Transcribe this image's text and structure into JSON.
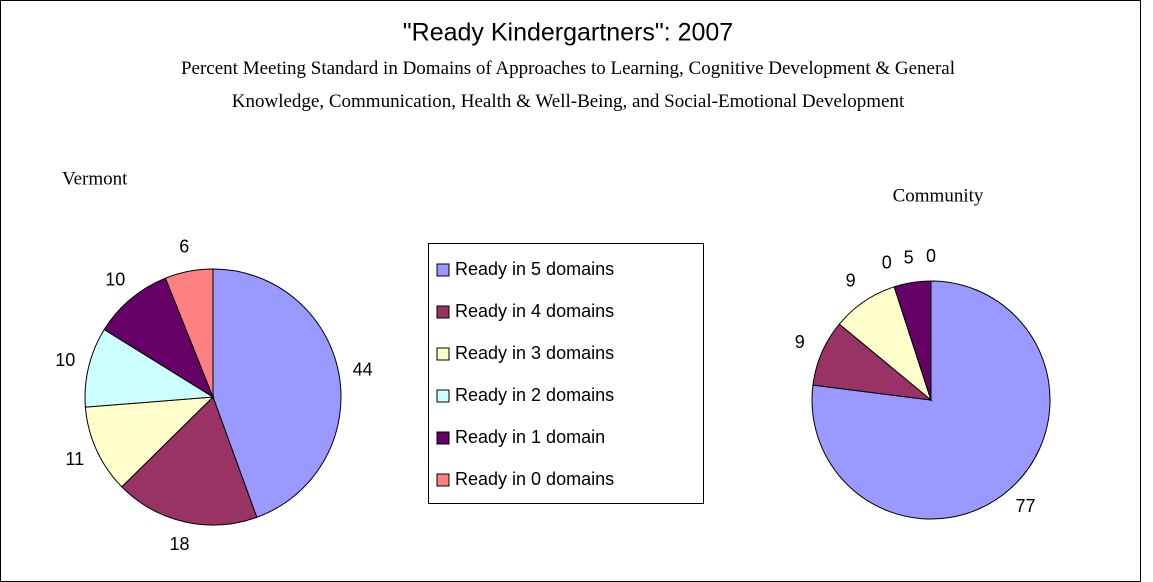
{
  "title": "\"Ready Kindergartners\": 2007",
  "subtitle": "Percent Meeting Standard in Domains of Approaches to Learning, Cognitive Development & General Knowledge, Communication, Health & Well-Being, and Social-Emotional Development",
  "chart_data": [
    {
      "type": "pie",
      "title": "Vermont",
      "categories": [
        "Ready in 5 domains",
        "Ready in 4 domains",
        "Ready in 3 domains",
        "Ready in 2 domains",
        "Ready in 1 domain",
        "Ready in 0 domains"
      ],
      "values": [
        44,
        18,
        11,
        10,
        10,
        6
      ],
      "colors": [
        "#9999ff",
        "#993366",
        "#ffffcc",
        "#ccffff",
        "#660066",
        "#ff8080"
      ],
      "legend": true
    },
    {
      "type": "pie",
      "title": "Community",
      "categories": [
        "Ready in 5 domains",
        "Ready in 4 domains",
        "Ready in 3 domains",
        "Ready in 2 domains",
        "Ready in 1 domain",
        "Ready in 0 domains"
      ],
      "values": [
        77,
        9,
        9,
        0,
        5,
        0
      ],
      "colors": [
        "#9999ff",
        "#993366",
        "#ffffcc",
        "#ccffff",
        "#660066",
        "#ff8080"
      ],
      "legend": false
    }
  ]
}
